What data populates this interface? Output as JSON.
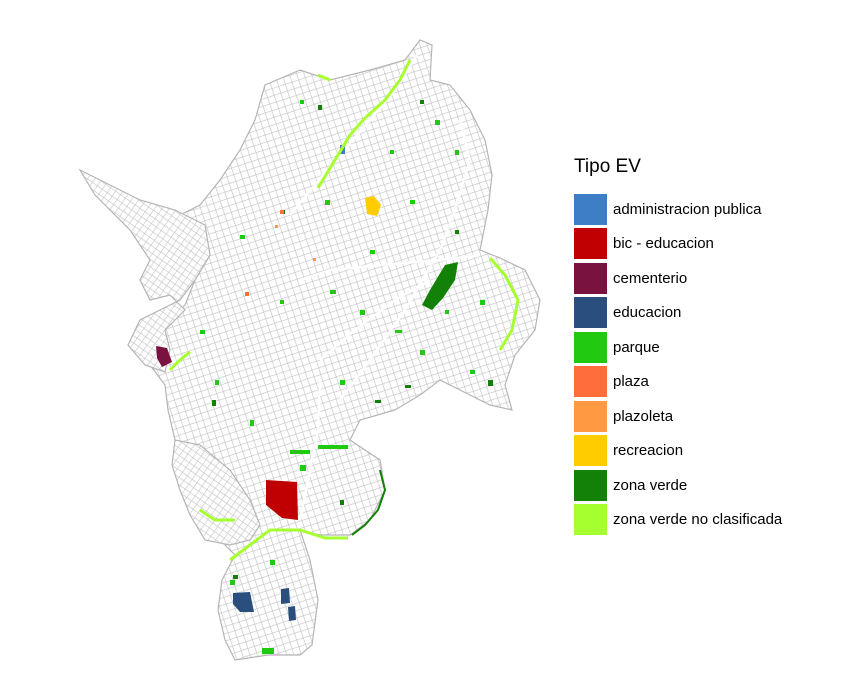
{
  "legend": {
    "title": "Tipo EV",
    "items": [
      {
        "key": "administracion-publica",
        "label": "administracion publica",
        "color": "#3E7EC6"
      },
      {
        "key": "bic-educacion",
        "label": "bic - educacion",
        "color": "#C00000"
      },
      {
        "key": "cementerio",
        "label": "cementerio",
        "color": "#7A1240"
      },
      {
        "key": "educacion",
        "label": "educacion",
        "color": "#2A4E7E"
      },
      {
        "key": "parque",
        "label": "parque",
        "color": "#22C911"
      },
      {
        "key": "plaza",
        "label": "plaza",
        "color": "#FF6D3B"
      },
      {
        "key": "plazoleta",
        "label": "plazoleta",
        "color": "#FF9A42"
      },
      {
        "key": "recreacion",
        "label": "recreacion",
        "color": "#FFCC00"
      },
      {
        "key": "zona-verde",
        "label": "zona verde",
        "color": "#138007"
      },
      {
        "key": "zona-verde-no-clasificada",
        "label": "zona verde no clasificada",
        "color": "#A6FF2E"
      }
    ]
  },
  "map_colors": {
    "street_network": "#BDBDBD",
    "background": "#FFFFFF"
  }
}
